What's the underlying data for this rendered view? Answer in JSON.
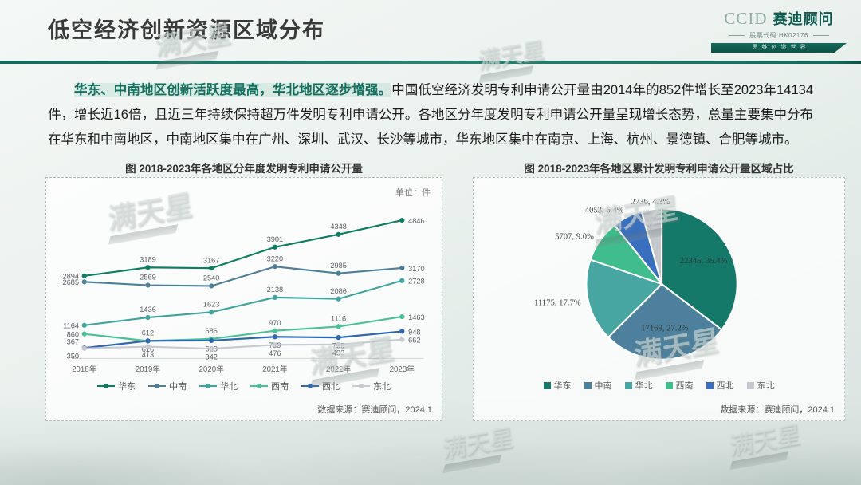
{
  "page": {
    "title": "低空经济创新资源区域分布",
    "watermark": "满天星"
  },
  "logo": {
    "brand_en": "CCID",
    "brand_cn": "赛迪顾问",
    "stock_code": "股票代码:HK02176",
    "slogan": "思维创造世界"
  },
  "summary": {
    "lead": "华东、中南地区创新活跃度最高，华北地区逐步增强。",
    "body": "中国低空经济发明专利申请公开量由2014年的852件增长至2023年14134件，增长近16倍，且近三年持续保持超万件发明专利申请公开。各地区分年度发明专利申请公开量呈现增长态势，总量主要集中分布在华东和中南地区，中南地区集中在广州、深圳、武汉、长沙等城市，华东地区集中在南京、上海、杭州、景德镇、合肥等城市。"
  },
  "chart_data": [
    {
      "type": "line",
      "title": "图 2018-2023年各地区分年度发明专利申请公开量",
      "unit_label": "单位：件",
      "categories": [
        "2018年",
        "2019年",
        "2020年",
        "2021年",
        "2022年",
        "2023年"
      ],
      "series": [
        {
          "name": "华东",
          "color": "#0e7d63",
          "values": [
            2894,
            3189,
            3167,
            3901,
            4348,
            4846
          ]
        },
        {
          "name": "中南",
          "color": "#4e7f99",
          "values": [
            2685,
            2569,
            2540,
            3220,
            2985,
            3170
          ]
        },
        {
          "name": "华北",
          "color": "#3fa4a0",
          "values": [
            1164,
            1436,
            1623,
            2138,
            2086,
            2728
          ]
        },
        {
          "name": "西南",
          "color": "#4cc096",
          "values": [
            860,
            612,
            686,
            970,
            1116,
            1463
          ]
        },
        {
          "name": "西北",
          "color": "#2f66b0",
          "values": [
            367,
            616,
            628,
            759,
            735,
            948
          ]
        },
        {
          "name": "东北",
          "color": "#c6cbd1",
          "values": [
            350,
            413,
            342,
            476,
            493,
            662
          ]
        }
      ],
      "ylim": [
        0,
        5000
      ],
      "grid": false,
      "legend_position": "bottom",
      "source": "数据来源：赛迪顾问，2024.1"
    },
    {
      "type": "pie",
      "title": "图 2018-2023年各地区累计发明专利申请公开量区域占比",
      "slices": [
        {
          "name": "华东",
          "value": 22345,
          "pct": "35.4%",
          "label": "22345, 35.4%",
          "color": "#15796a"
        },
        {
          "name": "中南",
          "value": 17169,
          "pct": "27.2%",
          "label": "17169, 27.2%",
          "color": "#4d809c"
        },
        {
          "name": "华北",
          "value": 11175,
          "pct": "17.7%",
          "label": "11175, 17.7%",
          "color": "#47a5a2"
        },
        {
          "name": "西南",
          "value": 5707,
          "pct": "9.0%",
          "label": "5707, 9.0%",
          "color": "#3fbd8d"
        },
        {
          "name": "西北",
          "value": 4053,
          "pct": "6.4%",
          "label": "4053, 6.4%",
          "color": "#3a6fc0"
        },
        {
          "name": "东北",
          "value": 2736,
          "pct": "4.3%",
          "label": "2736, 4.3%",
          "color": "#c4c8cd"
        }
      ],
      "legend_position": "bottom",
      "source": "数据来源：赛迪顾问，2024.1"
    }
  ]
}
